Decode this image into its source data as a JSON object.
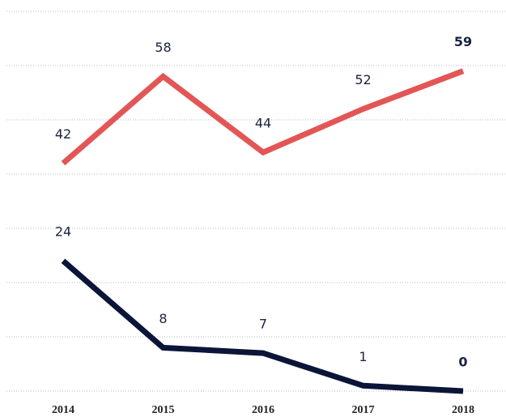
{
  "chart_data": {
    "type": "line",
    "categories": [
      "2014",
      "2015",
      "2016",
      "2017",
      "2018"
    ],
    "series": [
      {
        "color": "#e35656",
        "values": [
          42,
          58,
          44,
          52,
          59
        ]
      },
      {
        "color": "#0b1538",
        "values": [
          24,
          8,
          7,
          1,
          0
        ]
      }
    ],
    "ylim": [
      0,
      70
    ],
    "yticks": [
      0,
      10,
      20,
      30,
      40,
      50,
      60,
      70
    ],
    "grid": true
  }
}
